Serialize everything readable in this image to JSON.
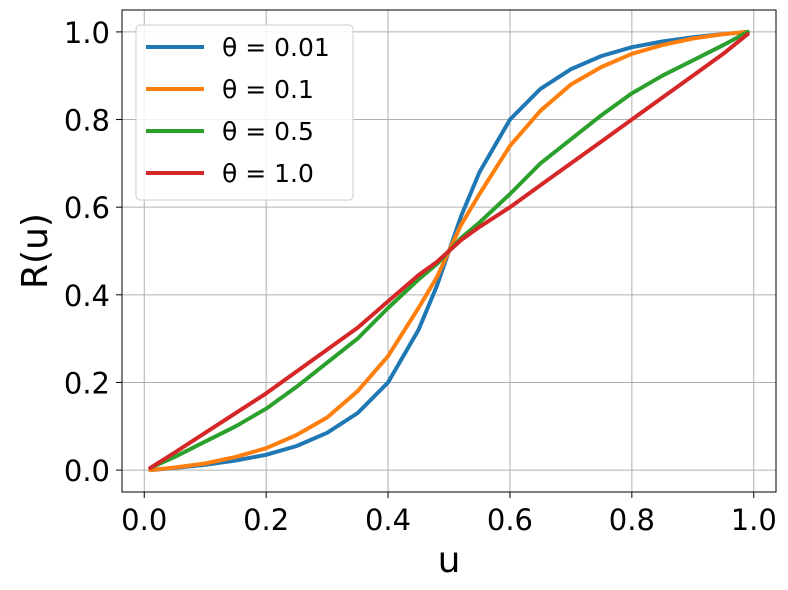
{
  "chart_data": {
    "type": "line",
    "title": "",
    "xlabel": "u",
    "ylabel": "R(u)",
    "xlim": [
      -0.0365,
      1.0365
    ],
    "ylim": [
      -0.05,
      1.05
    ],
    "xticks": [
      0.0,
      0.2,
      0.4,
      0.6,
      0.8,
      1.0
    ],
    "xtick_labels": [
      "0.0",
      "0.2",
      "0.4",
      "0.6",
      "0.8",
      "1.0"
    ],
    "yticks": [
      0.0,
      0.2,
      0.4,
      0.6,
      0.8,
      1.0
    ],
    "ytick_labels": [
      "0.0",
      "0.2",
      "0.4",
      "0.6",
      "0.8",
      "1.0"
    ],
    "grid": true,
    "legend_position": "top-left",
    "x": [
      0.01,
      0.05,
      0.1,
      0.15,
      0.2,
      0.25,
      0.3,
      0.35,
      0.4,
      0.45,
      0.48,
      0.5,
      0.52,
      0.55,
      0.6,
      0.65,
      0.7,
      0.75,
      0.8,
      0.85,
      0.9,
      0.95,
      0.99
    ],
    "series": [
      {
        "name": "θ = 0.01",
        "color": "#1f77b4",
        "values": [
          0.0,
          0.005,
          0.012,
          0.022,
          0.035,
          0.055,
          0.085,
          0.13,
          0.2,
          0.32,
          0.42,
          0.5,
          0.58,
          0.68,
          0.8,
          0.87,
          0.915,
          0.945,
          0.965,
          0.978,
          0.988,
          0.995,
          1.0
        ]
      },
      {
        "name": "θ = 0.1",
        "color": "#ff7f0e",
        "values": [
          0.0,
          0.006,
          0.015,
          0.03,
          0.05,
          0.08,
          0.12,
          0.18,
          0.26,
          0.37,
          0.44,
          0.5,
          0.56,
          0.63,
          0.74,
          0.82,
          0.88,
          0.92,
          0.95,
          0.97,
          0.985,
          0.995,
          1.0
        ]
      },
      {
        "name": "θ = 0.5",
        "color": "#2ca02c",
        "values": [
          0.005,
          0.03,
          0.065,
          0.1,
          0.14,
          0.19,
          0.245,
          0.3,
          0.37,
          0.435,
          0.47,
          0.5,
          0.53,
          0.565,
          0.63,
          0.7,
          0.755,
          0.81,
          0.86,
          0.9,
          0.935,
          0.97,
          1.0
        ]
      },
      {
        "name": "θ = 1.0",
        "color": "#d62728",
        "values": [
          0.005,
          0.04,
          0.085,
          0.13,
          0.175,
          0.225,
          0.275,
          0.325,
          0.385,
          0.445,
          0.475,
          0.5,
          0.525,
          0.555,
          0.6,
          0.65,
          0.7,
          0.75,
          0.8,
          0.85,
          0.9,
          0.95,
          0.995
        ]
      }
    ]
  }
}
